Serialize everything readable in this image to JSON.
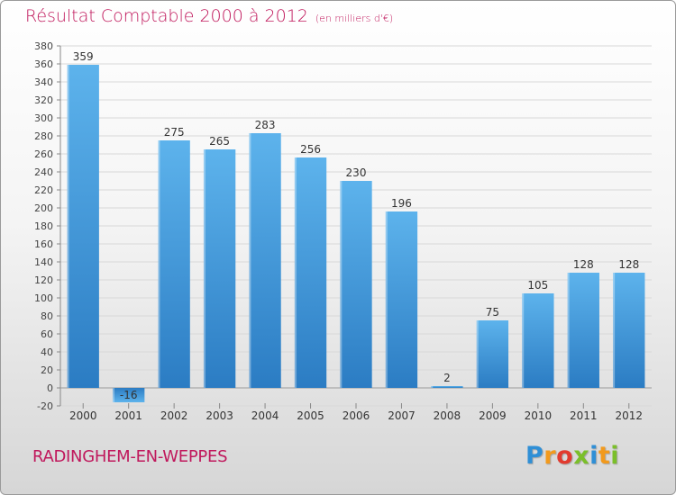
{
  "header": {
    "title": "Résultat Comptable 2000 à 2012",
    "subtitle": "(en milliers d'€)"
  },
  "footer": {
    "commune": "RADINGHEM-EN-WEPPES",
    "logo_letters": [
      "P",
      "r",
      "o",
      "x",
      "i",
      "t",
      "i"
    ],
    "logo_colors": [
      "#2f8fd6",
      "#f29a1d",
      "#e23b2f",
      "#7bbf2a",
      "#2f8fd6",
      "#f29a1d",
      "#7bbf2a"
    ]
  },
  "colors": {
    "bar_top": "#5db3ec",
    "bar_bottom": "#2b7cc3",
    "title": "#c0185c",
    "grid": "#d8d8d8"
  },
  "chart_data": {
    "type": "bar",
    "title": "Résultat Comptable 2000 à 2012",
    "subtitle": "(en milliers d'€)",
    "xlabel": "",
    "ylabel": "",
    "categories": [
      "2000",
      "2001",
      "2002",
      "2003",
      "2004",
      "2005",
      "2006",
      "2007",
      "2008",
      "2009",
      "2010",
      "2011",
      "2012"
    ],
    "values": [
      359,
      -16,
      275,
      265,
      283,
      256,
      230,
      196,
      2,
      75,
      105,
      128,
      128
    ],
    "data_labels": [
      "359",
      "-16",
      "275",
      "265",
      "283",
      "256",
      "230",
      "196",
      "2",
      "75",
      "105",
      "128",
      "128"
    ],
    "ylim": [
      -20,
      380
    ],
    "yticks": [
      -20,
      0,
      20,
      40,
      60,
      80,
      100,
      120,
      140,
      160,
      180,
      200,
      220,
      240,
      260,
      280,
      300,
      320,
      340,
      360,
      380
    ],
    "grid": true,
    "legend": "none"
  }
}
